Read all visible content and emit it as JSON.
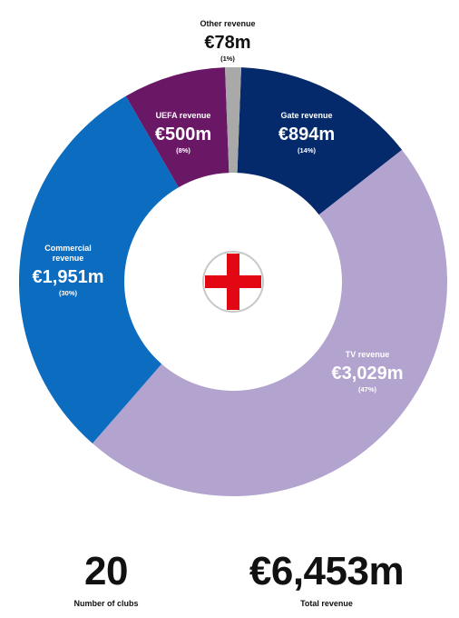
{
  "colors": {
    "background": "#ffffff",
    "emblem_red": "#e30613",
    "emblem_ring": "#c8c8c8",
    "text_dark": "#111111"
  },
  "chart_data": {
    "type": "donut",
    "unit": "€ million",
    "slices": [
      {
        "name": "Gate revenue",
        "value_label": "€894m",
        "percent_label": "(14%)",
        "value": 894,
        "percent": 14,
        "color": "#052a6b"
      },
      {
        "name": "TV revenue",
        "value_label": "€3,029m",
        "percent_label": "(47%)",
        "value": 3029,
        "percent": 47,
        "color": "#b3a3cf"
      },
      {
        "name": "Commercial revenue",
        "value_label": "€1,951m",
        "percent_label": "(30%)",
        "value": 1951,
        "percent": 30,
        "color": "#0b6cc0"
      },
      {
        "name": "UEFA revenue",
        "value_label": "€500m",
        "percent_label": "(8%)",
        "value": 500,
        "percent": 8,
        "color": "#6a1866"
      },
      {
        "name": "Other revenue",
        "value_label": "€78m",
        "percent_label": "(1%)",
        "value": 78,
        "percent": 1,
        "color": "#a9a9a9"
      }
    ],
    "center_icon": "england-flag-icon"
  },
  "stats": {
    "clubs_value": "20",
    "clubs_label": "Number of clubs",
    "total_value": "€6,453m",
    "total_label": "Total revenue"
  }
}
